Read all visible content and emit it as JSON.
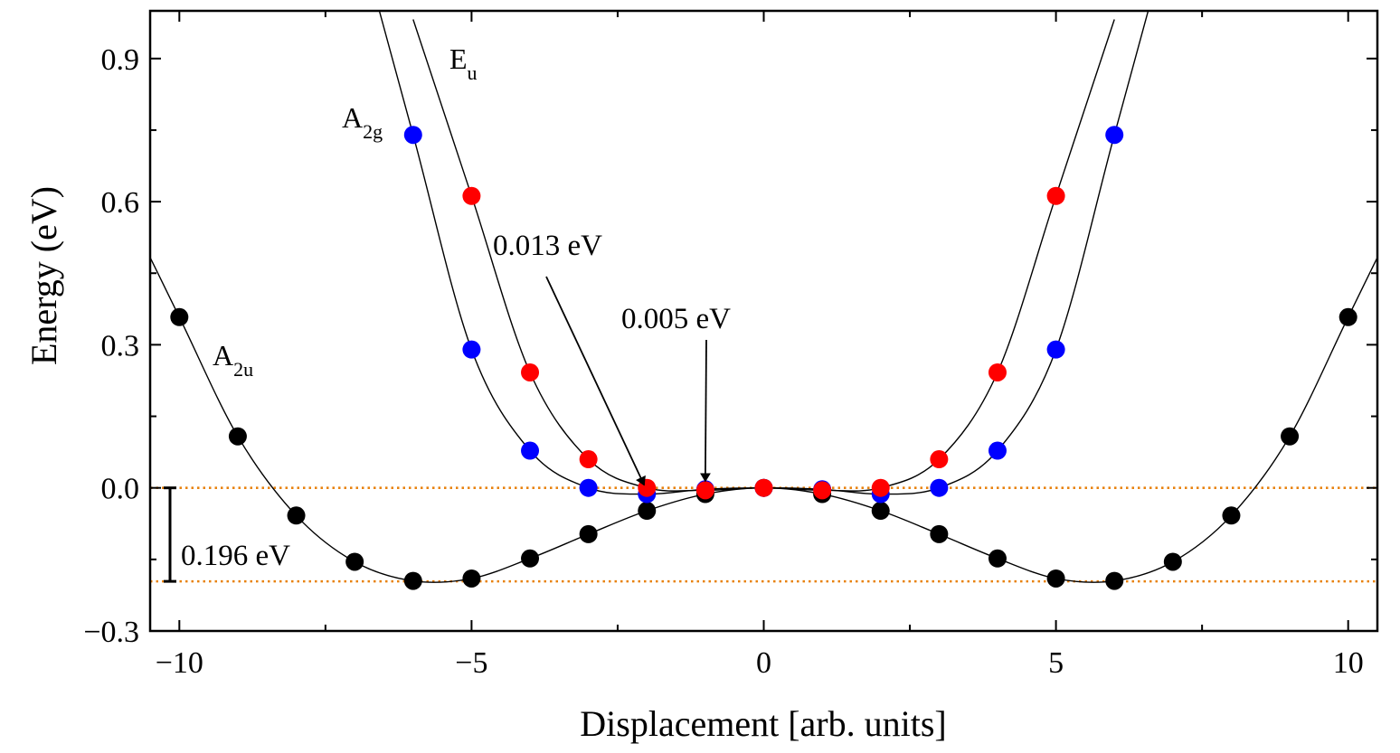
{
  "chart_data": {
    "type": "scatter",
    "title": "",
    "xlabel": "Displacement [arb. units]",
    "ylabel": "Energy (eV)",
    "xlim": [
      -10.5,
      10.5
    ],
    "ylim": [
      -0.3,
      1.0
    ],
    "xticks": [
      -10,
      -5,
      0,
      5,
      10
    ],
    "xtick_labels": [
      "−10",
      "−5",
      "0",
      "5",
      "10"
    ],
    "yticks": [
      -0.3,
      0.0,
      0.3,
      0.6,
      0.9
    ],
    "ytick_labels": [
      "−0.3",
      "0.0",
      "0.3",
      "0.6",
      "0.9"
    ],
    "grid": false,
    "series": [
      {
        "name": "A2u",
        "label_main": "A",
        "label_sub": "2u",
        "color": "#000000",
        "x": [
          -10,
          -9,
          -8,
          -7,
          -6,
          -5,
          -4,
          -3,
          -2,
          -1,
          0,
          1,
          2,
          3,
          4,
          5,
          6,
          7,
          8,
          9,
          10
        ],
        "y": [
          0.358,
          0.108,
          -0.058,
          -0.155,
          -0.195,
          -0.19,
          -0.148,
          -0.097,
          -0.048,
          -0.013,
          0.0,
          -0.013,
          -0.048,
          -0.097,
          -0.148,
          -0.19,
          -0.195,
          -0.155,
          -0.058,
          0.108,
          0.358
        ]
      },
      {
        "name": "A2g",
        "label_main": "A",
        "label_sub": "2g",
        "color": "#0000ff",
        "x": [
          -6,
          -5,
          -4,
          -3,
          -2,
          -1,
          0,
          1,
          2,
          3,
          4,
          5,
          6
        ],
        "y": [
          0.74,
          0.29,
          0.078,
          0.0,
          -0.013,
          -0.003,
          0.0,
          -0.003,
          -0.013,
          0.0,
          0.078,
          0.29,
          0.74
        ]
      },
      {
        "name": "Eu",
        "label_main": "E",
        "label_sub": "u",
        "color": "#ff0000",
        "x": [
          -5,
          -4,
          -3,
          -2,
          -1,
          0,
          1,
          2,
          3,
          4,
          5
        ],
        "y": [
          0.612,
          0.242,
          0.06,
          0.0,
          -0.005,
          0.0,
          -0.005,
          0.0,
          0.06,
          0.242,
          0.612
        ]
      }
    ],
    "reference_lines": [
      {
        "y": 0.0,
        "color": "#e8820e",
        "style": "dotted"
      },
      {
        "y": -0.196,
        "color": "#e8820e",
        "style": "dotted"
      }
    ],
    "annotations": {
      "barrier": {
        "text": "0.196 eV",
        "y_top": 0.0,
        "y_bottom": -0.196
      },
      "arrow_a2g": {
        "text": "0.013 eV",
        "target_x": -2,
        "target_y": -0.013
      },
      "arrow_eu": {
        "text": "0.005 eV",
        "target_x": -1,
        "target_y": -0.005
      }
    }
  }
}
